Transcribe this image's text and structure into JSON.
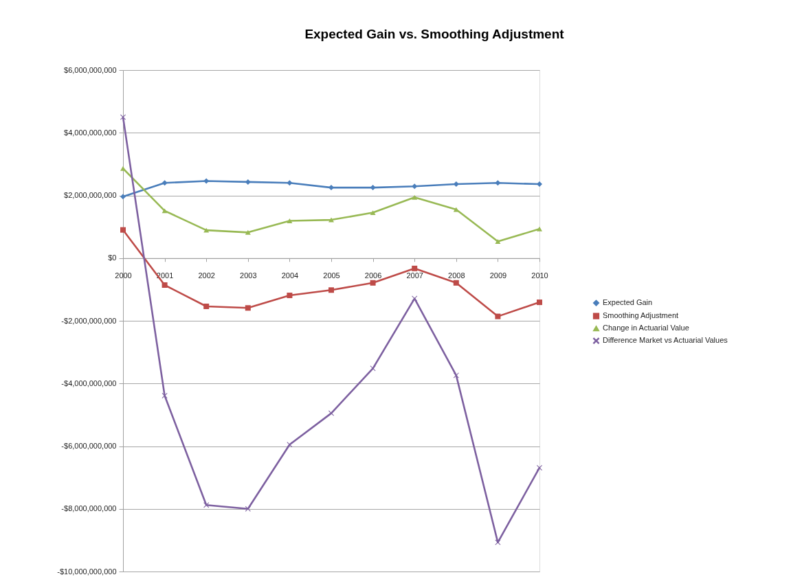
{
  "chart_data": {
    "type": "line",
    "title": "Expected Gain vs. Smoothing Adjustment",
    "categories": [
      "2000",
      "2001",
      "2002",
      "2003",
      "2004",
      "2005",
      "2006",
      "2007",
      "2008",
      "2009",
      "2010"
    ],
    "series": [
      {
        "name": "Expected Gain",
        "color": "#4a7ebb",
        "marker": "diamond",
        "values": [
          1960000000,
          2400000000,
          2460000000,
          2430000000,
          2400000000,
          2250000000,
          2250000000,
          2290000000,
          2360000000,
          2400000000,
          2360000000
        ]
      },
      {
        "name": "Smoothing Adjustment",
        "color": "#be4b48",
        "marker": "square",
        "values": [
          900000000,
          -860000000,
          -1540000000,
          -1590000000,
          -1190000000,
          -1020000000,
          -790000000,
          -330000000,
          -790000000,
          -1860000000,
          -1410000000
        ]
      },
      {
        "name": "Change in Actuarial Value",
        "color": "#98b954",
        "marker": "triangle",
        "values": [
          2860000000,
          1510000000,
          890000000,
          820000000,
          1190000000,
          1220000000,
          1450000000,
          1940000000,
          1550000000,
          530000000,
          930000000
        ]
      },
      {
        "name": "Difference Market vs Actuarial Values",
        "color": "#7d60a0",
        "marker": "cross",
        "values": [
          4500000000,
          -4390000000,
          -7880000000,
          -8000000000,
          -5950000000,
          -4950000000,
          -3520000000,
          -1290000000,
          -3740000000,
          -9070000000,
          -6690000000
        ]
      }
    ],
    "ylim": [
      -10000000000,
      6000000000
    ],
    "yticks": [
      {
        "value": -10000000000,
        "label": "-$10,000,000,000"
      },
      {
        "value": -8000000000,
        "label": "-$8,000,000,000"
      },
      {
        "value": -6000000000,
        "label": "-$6,000,000,000"
      },
      {
        "value": -4000000000,
        "label": "-$4,000,000,000"
      },
      {
        "value": -2000000000,
        "label": "-$2,000,000,000"
      },
      {
        "value": 0,
        "label": "$0"
      },
      {
        "value": 2000000000,
        "label": "$2,000,000,000"
      },
      {
        "value": 4000000000,
        "label": "$4,000,000,000"
      },
      {
        "value": 6000000000,
        "label": "$6,000,000,000"
      }
    ],
    "grid": "y",
    "legend": "right",
    "line_style": "solid"
  }
}
